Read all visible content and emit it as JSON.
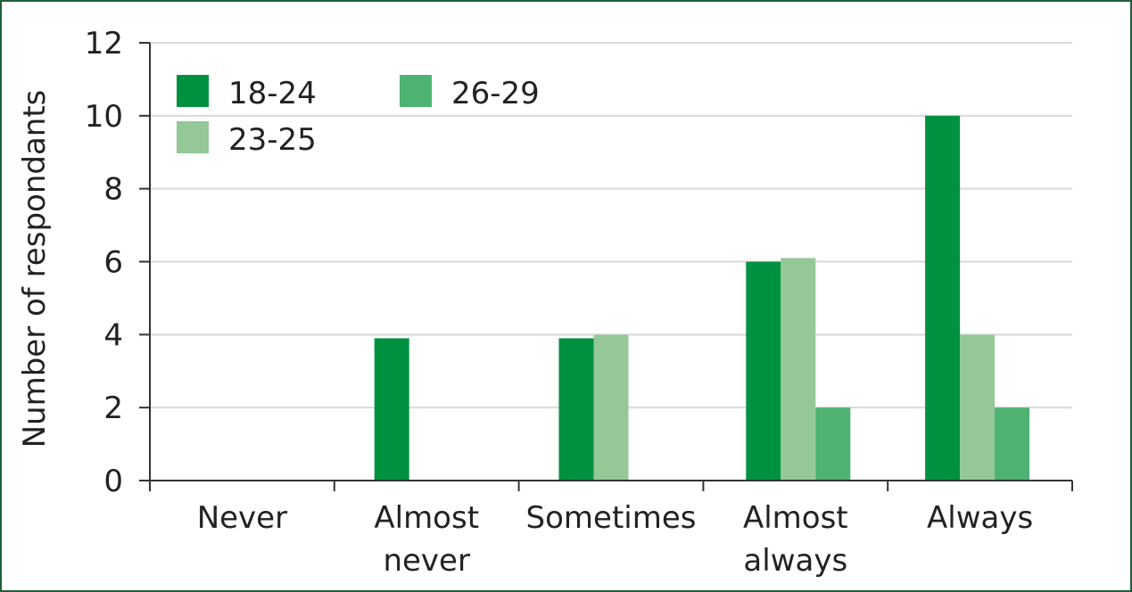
{
  "chart_data": {
    "type": "bar",
    "ylabel": "Number of respondants",
    "categories": [
      [
        "Never"
      ],
      [
        "Almost",
        "never"
      ],
      [
        "Sometimes"
      ],
      [
        "Almost",
        "always"
      ],
      [
        "Always"
      ]
    ],
    "series": [
      {
        "name": "18-24",
        "color": "#009140",
        "values": [
          0,
          3.9,
          3.9,
          6.0,
          10.0
        ]
      },
      {
        "name": "23-25",
        "color": "#95c899",
        "values": [
          0,
          0,
          4.0,
          6.1,
          4.0
        ]
      },
      {
        "name": "26-29",
        "color": "#4db272",
        "values": [
          0,
          0,
          0,
          2.0,
          2.0
        ]
      }
    ],
    "ylim": [
      0,
      12
    ],
    "yticks": [
      0,
      2,
      4,
      6,
      8,
      10,
      12
    ],
    "grid": true,
    "legend_position": "top-left"
  }
}
